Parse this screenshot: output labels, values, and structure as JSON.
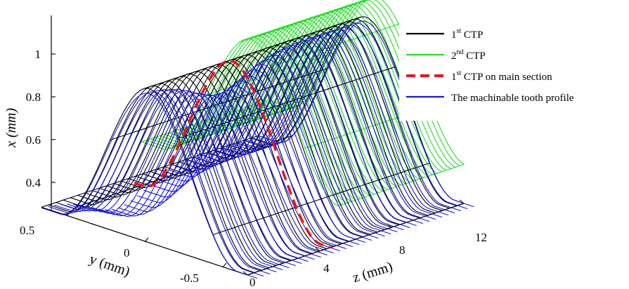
{
  "chart_data": {
    "type": "surface",
    "xlabel": "x (mm)",
    "ylabel": "y (mm)",
    "zlabel": "z (mm)",
    "x_axis": {
      "ticks": [
        0.4,
        0.6,
        0.8,
        1
      ],
      "tick_labels": [
        "0.4",
        "0.6",
        "0.8",
        "1"
      ]
    },
    "y_axis": {
      "ticks": [
        0.5,
        0,
        -0.5
      ],
      "tick_labels": [
        "0.5",
        "0",
        "-0.5"
      ]
    },
    "z_axis": {
      "ticks": [
        0,
        4,
        8,
        12
      ],
      "tick_labels": [
        "0",
        "4",
        "8",
        "12"
      ]
    },
    "legend_position": "top-right",
    "series": [
      {
        "key": "ctp1",
        "label_pre": "1",
        "label_sup": "st",
        "label_post": " CTP",
        "color": "#000000",
        "style": "solid",
        "x_base": 0.28,
        "x_peak": 1.0,
        "z_range": [
          0,
          12
        ]
      },
      {
        "key": "ctp2",
        "label_pre": "2",
        "label_sup": "nd",
        "label_post": " CTP",
        "color": "#22dd22",
        "style": "solid",
        "x_base": 0.28,
        "x_peak": 1.18,
        "z_range": [
          0,
          12
        ]
      },
      {
        "key": "ctp1_main",
        "label_pre": "1",
        "label_sup": "st",
        "label_post": " CTP on main section",
        "color": "#e8141e",
        "style": "dashed",
        "x_base": 0.28,
        "x_peak": 1.0
      },
      {
        "key": "machinable",
        "label_pre": "The machinable tooth profile",
        "label_sup": "",
        "label_post": "",
        "color": "#1414e6",
        "style": "solid",
        "x_base": 0.28,
        "x_peak": 1.0,
        "z_range": [
          0,
          12
        ]
      }
    ]
  }
}
